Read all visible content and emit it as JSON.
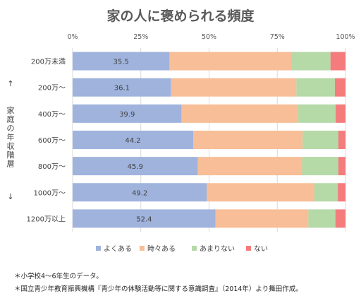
{
  "chart_data": {
    "type": "bar",
    "orientation": "horizontal",
    "stacked": "percent",
    "title": "家の人に褒められる頻度",
    "ylabel_top_arrow": "↑",
    "ylabel": "家庭の年収階層",
    "ylabel_bottom_arrow": "↓",
    "xlim": [
      0,
      100
    ],
    "x_ticks": [
      "0%",
      "25%",
      "50%",
      "75%",
      "100%"
    ],
    "categories": [
      "200万未満",
      "200万～",
      "400万～",
      "600万～",
      "800万～",
      "1000万～",
      "1200万以上"
    ],
    "series": [
      {
        "name": "よくある",
        "color": "#9fb3dd",
        "values": [
          35.5,
          36.1,
          39.9,
          44.2,
          45.9,
          49.2,
          52.4
        ],
        "show_labels": true
      },
      {
        "name": "時々ある",
        "color": "#f7be97",
        "values": [
          44.6,
          45.9,
          42.7,
          40.1,
          38.2,
          39.4,
          34.0
        ],
        "show_labels": false
      },
      {
        "name": "あまりない",
        "color": "#b5d9a7",
        "values": [
          14.4,
          14.1,
          13.8,
          13.1,
          13.3,
          8.6,
          9.9
        ],
        "show_labels": false
      },
      {
        "name": "ない",
        "color": "#f47c7c",
        "values": [
          5.5,
          3.9,
          3.6,
          2.6,
          2.6,
          2.8,
          3.7
        ],
        "show_labels": false
      }
    ],
    "grid": true,
    "legend_position": "bottom"
  },
  "notes": [
    "＊小学校4～6年生のデータ。",
    "＊国立青少年教育振興機構『青少年の体験活動等に関する意識調査』（2014年）より舞田作成。"
  ]
}
